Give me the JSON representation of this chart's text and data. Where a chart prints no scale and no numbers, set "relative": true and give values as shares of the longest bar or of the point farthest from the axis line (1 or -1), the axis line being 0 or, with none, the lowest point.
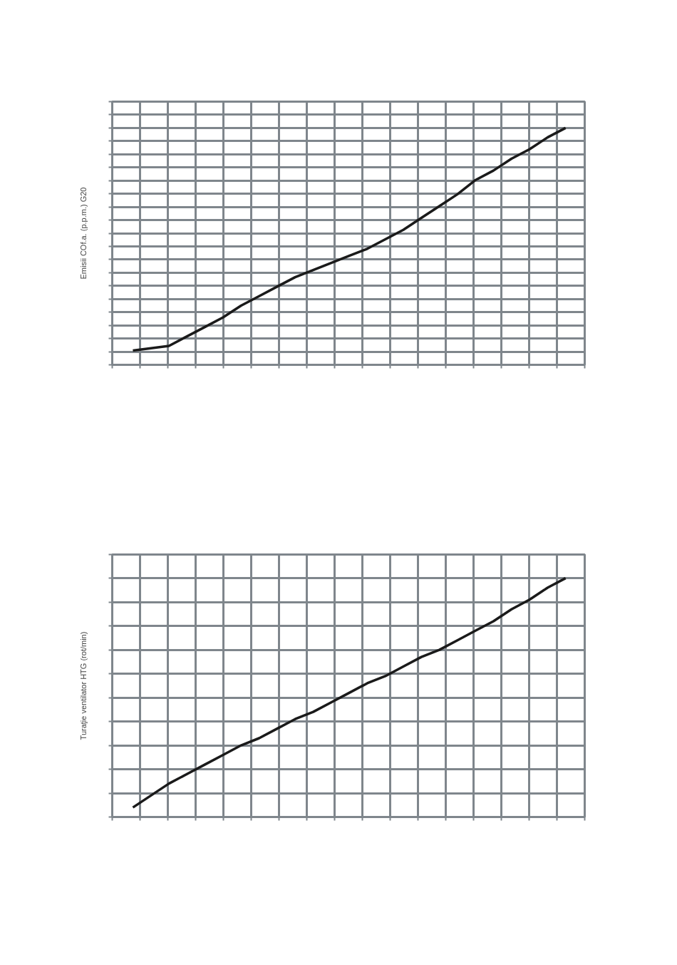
{
  "chart_data": [
    {
      "type": "line",
      "ylabel": "Emisii COf.a. (p.p.m.) G20",
      "relative": true,
      "grid": true,
      "tick_labels": false,
      "categories": [
        null,
        null,
        null,
        null,
        null,
        null,
        null,
        null,
        null,
        null,
        null,
        null,
        null,
        null,
        null,
        null,
        null,
        null,
        null,
        null,
        null,
        null,
        null,
        null,
        null
      ],
      "series": [
        {
          "color": "#1a1a1a",
          "values": [
            0.06,
            0.07,
            0.08,
            0.12,
            0.16,
            0.2,
            0.25,
            0.29,
            0.33,
            0.37,
            0.4,
            0.43,
            0.46,
            0.49,
            0.53,
            0.57,
            0.62,
            0.67,
            0.72,
            0.78,
            0.82,
            0.87,
            0.91,
            0.96,
            1.0
          ]
        }
      ]
    },
    {
      "type": "line",
      "ylabel": "Turaţie ventilator HTG (rot/min)",
      "relative": true,
      "grid": true,
      "tick_labels": false,
      "categories": [
        null,
        null,
        null,
        null,
        null,
        null,
        null,
        null,
        null,
        null,
        null,
        null,
        null,
        null,
        null,
        null,
        null,
        null,
        null,
        null,
        null,
        null,
        null,
        null,
        null
      ],
      "series": [
        {
          "color": "#1a1a1a",
          "values": [
            0.04,
            0.09,
            0.14,
            0.18,
            0.22,
            0.26,
            0.3,
            0.33,
            0.37,
            0.41,
            0.44,
            0.48,
            0.52,
            0.56,
            0.59,
            0.63,
            0.67,
            0.7,
            0.74,
            0.78,
            0.82,
            0.87,
            0.91,
            0.96,
            1.0
          ]
        }
      ]
    }
  ]
}
